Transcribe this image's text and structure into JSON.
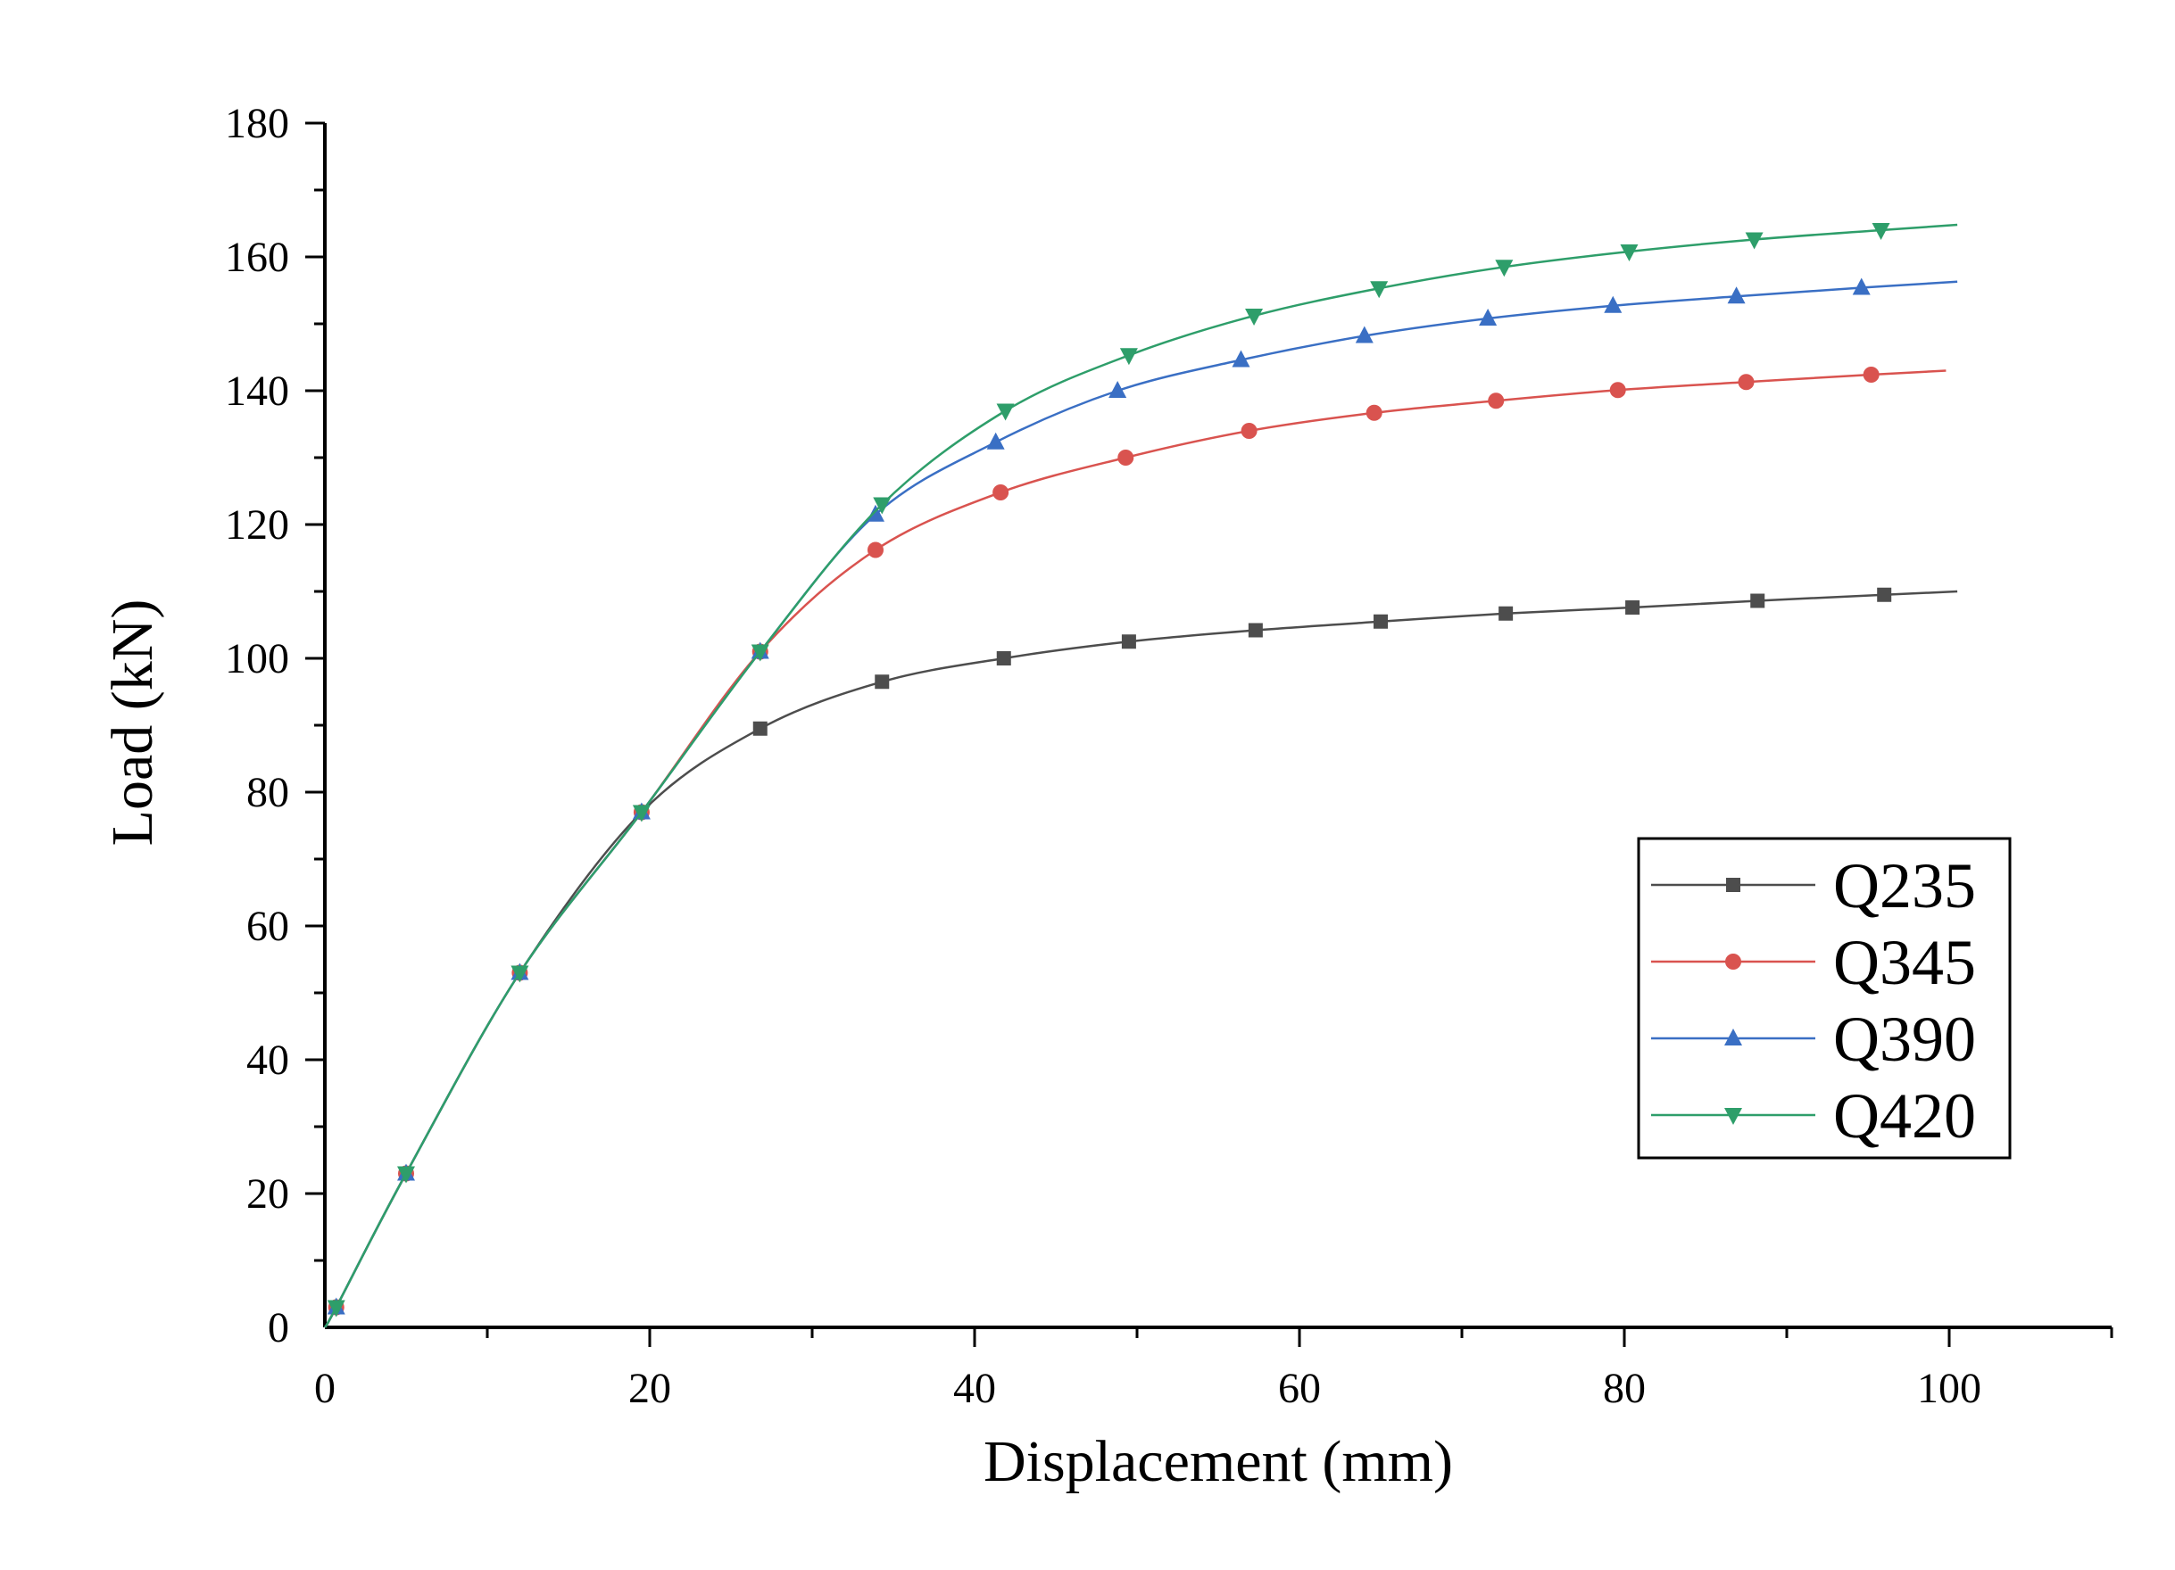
{
  "chart_data": {
    "type": "line",
    "title": "",
    "xlabel": "Displacement (mm)",
    "ylabel": "Load (kN)",
    "xlim": [
      0,
      110
    ],
    "ylim": [
      0,
      180
    ],
    "xticks": [
      0,
      20,
      40,
      60,
      80,
      100
    ],
    "yticks": [
      0,
      20,
      40,
      60,
      80,
      100,
      120,
      140,
      160,
      180
    ],
    "x_minor_step": 10,
    "y_minor_step": 10,
    "grid": false,
    "legend_position": "lower-right",
    "series": [
      {
        "name": "Q235",
        "color": "#4d4d4d",
        "marker": "square",
        "x": [
          0,
          0.7,
          5,
          12,
          19.5,
          26.8,
          34.3,
          41.8,
          49.5,
          57.3,
          65,
          72.7,
          80.5,
          88.2,
          96,
          100.5
        ],
        "y": [
          0,
          3,
          23,
          53,
          77,
          89.5,
          96.5,
          100,
          102.5,
          104.2,
          105.5,
          106.7,
          107.6,
          108.6,
          109.5,
          110
        ]
      },
      {
        "name": "Q345",
        "color": "#d9534f",
        "marker": "circle",
        "x": [
          0,
          0.7,
          5,
          12,
          19.5,
          26.8,
          33.9,
          41.6,
          49.3,
          56.9,
          64.6,
          72.1,
          79.6,
          87.5,
          95.2,
          99.8
        ],
        "y": [
          0,
          3,
          23,
          53,
          77,
          101,
          116.2,
          124.8,
          130,
          134,
          136.7,
          138.5,
          140.1,
          141.3,
          142.4,
          143
        ]
      },
      {
        "name": "Q390",
        "color": "#3a6fc4",
        "marker": "triangle-up",
        "x": [
          0,
          0.7,
          5,
          12,
          19.5,
          26.8,
          33.9,
          41.3,
          48.8,
          56.4,
          64,
          71.6,
          79.3,
          86.9,
          94.6,
          100.5
        ],
        "y": [
          0,
          3,
          23,
          53,
          77,
          101,
          121.5,
          132.3,
          140,
          144.6,
          148.2,
          150.8,
          152.7,
          154.1,
          155.4,
          156.3
        ]
      },
      {
        "name": "Q420",
        "color": "#2e9e6a",
        "marker": "triangle-down",
        "x": [
          0,
          0.7,
          5,
          12,
          19.5,
          26.8,
          34.3,
          41.9,
          49.5,
          57.2,
          64.9,
          72.6,
          80.3,
          88,
          95.8,
          100.5
        ],
        "y": [
          0,
          3,
          23,
          53,
          77,
          101,
          123,
          137,
          145.3,
          151.2,
          155.3,
          158.5,
          160.8,
          162.6,
          164,
          164.8
        ]
      }
    ]
  }
}
